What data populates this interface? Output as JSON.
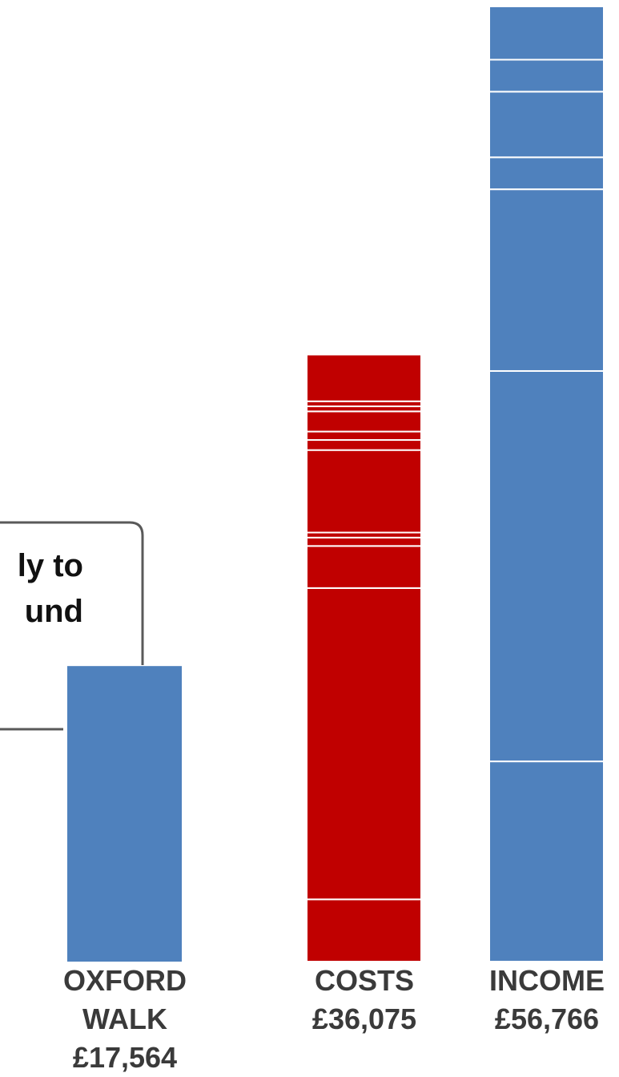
{
  "chart_data": {
    "type": "bar",
    "stacked": true,
    "categories": [
      "OXFORD WALK",
      "COSTS",
      "INCOME"
    ],
    "category_values": [
      "£17,564",
      "£36,075",
      "£56,766"
    ],
    "totals": [
      17564,
      36075,
      56766
    ],
    "segments": [
      [
        17564
      ],
      [
        3700,
        18500,
        2500,
        500,
        300,
        4900,
        600,
        500,
        1200,
        300,
        300,
        2775
      ],
      [
        11900,
        23200,
        10800,
        1900,
        3900,
        1900,
        3166
      ]
    ],
    "colors": [
      "#4f81bd",
      "#c00000",
      "#4f81bd"
    ],
    "ylim": [
      0,
      56766
    ],
    "grid": false,
    "legend": false
  },
  "callout": {
    "line1": "ly to",
    "line2": "und"
  }
}
